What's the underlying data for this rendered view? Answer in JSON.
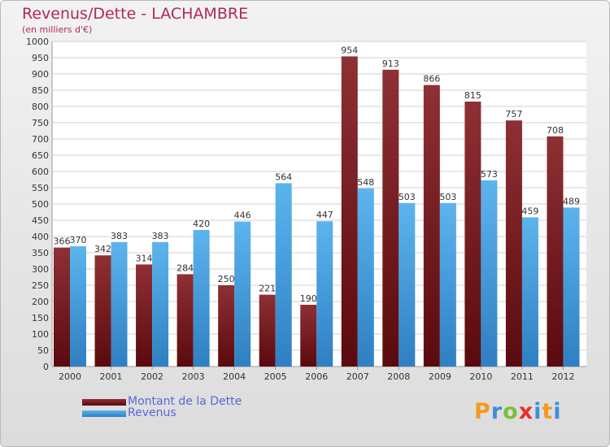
{
  "header": {
    "title": "Revenus/Dette - LACHAMBRE",
    "subtitle": "(en milliers d'€)"
  },
  "legend": {
    "dette_label": "Montant de la Dette",
    "revenus_label": "Revenus"
  },
  "logo": {
    "letters": [
      "P",
      "r",
      "o",
      "x",
      "i",
      "t",
      "i"
    ]
  },
  "colors": {
    "dette_light": "#8e3034",
    "dette_dark": "#5a0a0e",
    "revenus_light": "#5cb4ee",
    "revenus_dark": "#2f7fc2",
    "title": "#b0285a",
    "legend_text": "#5a66d8",
    "logo": [
      "#f39a1f",
      "#3c8fd8",
      "#7cbf3a",
      "#e8302a",
      "#3c8fd8",
      "#f39a1f",
      "#3c8fd8"
    ]
  },
  "chart_data": {
    "type": "bar",
    "categories": [
      "2000",
      "2001",
      "2002",
      "2003",
      "2004",
      "2005",
      "2006",
      "2007",
      "2008",
      "2009",
      "2010",
      "2011",
      "2012"
    ],
    "series": [
      {
        "name": "Montant de la Dette",
        "values": [
          366,
          342,
          314,
          284,
          250,
          221,
          190,
          954,
          913,
          866,
          815,
          757,
          708
        ]
      },
      {
        "name": "Revenus",
        "values": [
          370,
          383,
          383,
          420,
          446,
          564,
          447,
          548,
          503,
          503,
          573,
          459,
          489
        ]
      }
    ],
    "ylim": [
      0,
      1000
    ],
    "yticks": [
      0,
      50,
      100,
      150,
      200,
      250,
      300,
      350,
      400,
      450,
      500,
      550,
      600,
      650,
      700,
      750,
      800,
      850,
      900,
      950,
      1000
    ],
    "grid": true,
    "legend": "bottom-left"
  }
}
